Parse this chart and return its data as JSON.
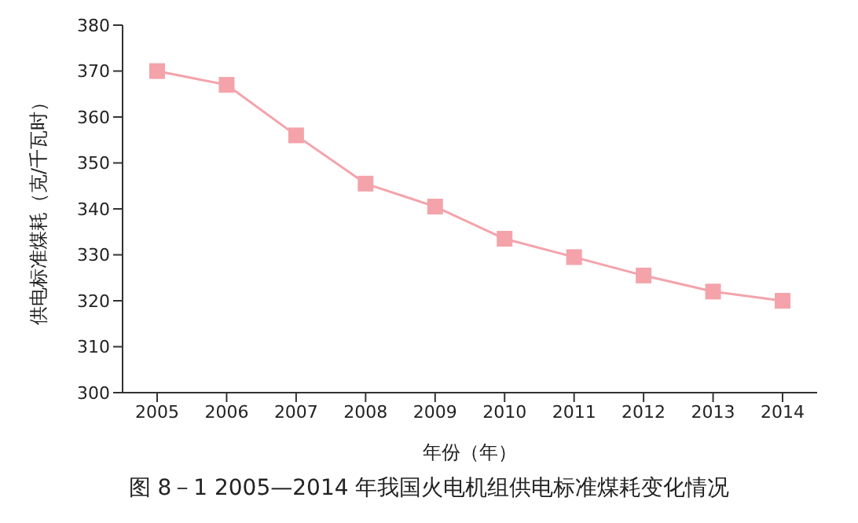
{
  "chart_data": {
    "type": "line",
    "title": "图 8－1   2005—2014 年我国火电机组供电标准煤耗变化情况",
    "xlabel": "年份（年）",
    "ylabel": "供电标准煤耗（克/千瓦时）",
    "categories": [
      "2005",
      "2006",
      "2007",
      "2008",
      "2009",
      "2010",
      "2011",
      "2012",
      "2013",
      "2014"
    ],
    "series": [
      {
        "color": "#f4a3ab",
        "values": [
          370,
          367,
          356,
          345.5,
          340.5,
          333.5,
          329.5,
          325.5,
          322,
          320
        ]
      }
    ],
    "ylim": [
      300,
      380
    ],
    "yticks": [
      300,
      310,
      320,
      330,
      340,
      350,
      360,
      370,
      380
    ],
    "grid": false,
    "legend": false,
    "marker": "square",
    "line_style": "solid"
  }
}
